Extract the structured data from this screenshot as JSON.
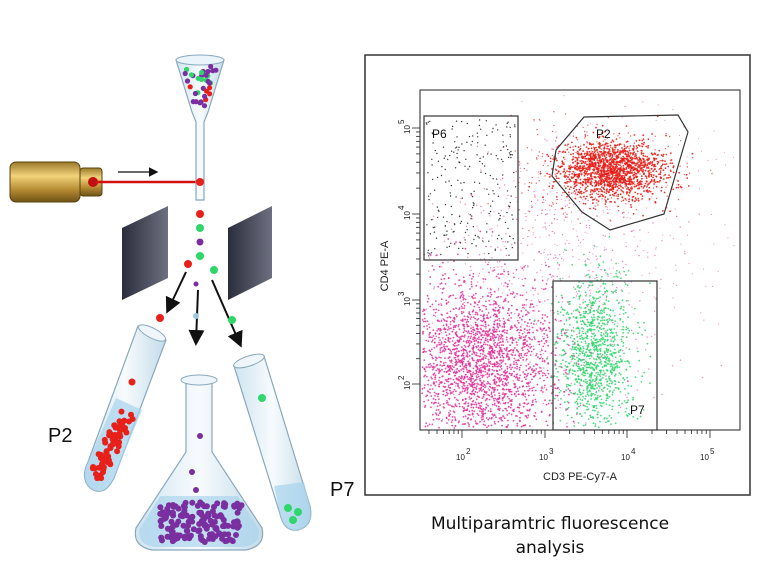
{
  "labels": {
    "tube_left": "P2",
    "tube_right": "P7"
  },
  "plot": {
    "x_axis_label": "CD3 PE-Cy7-A",
    "y_axis_label": "CD4 PE-A",
    "x_ticks": [
      {
        "base": "10",
        "exp": "2"
      },
      {
        "base": "10",
        "exp": "3"
      },
      {
        "base": "10",
        "exp": "4"
      },
      {
        "base": "10",
        "exp": "5"
      }
    ],
    "y_ticks": [
      {
        "base": "10",
        "exp": "2"
      },
      {
        "base": "10",
        "exp": "3"
      },
      {
        "base": "10",
        "exp": "4"
      },
      {
        "base": "10",
        "exp": "5"
      }
    ],
    "gates": [
      {
        "id": "P6"
      },
      {
        "id": "P2"
      },
      {
        "id": "P7"
      }
    ]
  },
  "caption": {
    "line1": "Multiparamtric fluorescence",
    "line2": "analysis"
  },
  "colors": {
    "red": "#e8201a",
    "green": "#2fd66b",
    "purple": "#7a2fa0",
    "magenta": "#e0309a",
    "black_cells": "#222222",
    "laser": "#d21010"
  }
}
